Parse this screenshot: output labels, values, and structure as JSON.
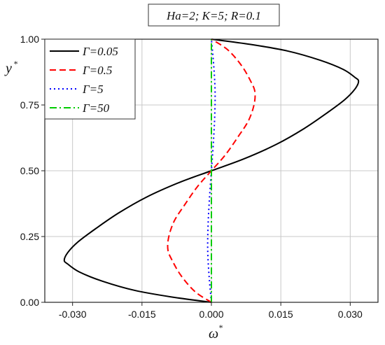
{
  "chart_data": {
    "type": "line",
    "title": "Ha=2; K=5; R=0.1",
    "xlabel": "ω",
    "xlabel_sup": "*",
    "ylabel": "y",
    "ylabel_sup": "*",
    "xlim": [
      -0.036,
      0.036
    ],
    "ylim": [
      0,
      1
    ],
    "xticks": [
      -0.03,
      -0.015,
      0.0,
      0.015,
      0.03
    ],
    "xtick_labels": [
      "-0.030",
      "-0.015",
      "0.000",
      "0.015",
      "0.030"
    ],
    "yticks": [
      0,
      0.25,
      0.5,
      0.75,
      1.0
    ],
    "ytick_labels": [
      "0.00",
      "0.25",
      "0.50",
      "0.75",
      "1.00"
    ],
    "grid": true,
    "legend_position": "top-left",
    "series": [
      {
        "name": "Γ=0.05",
        "color": "#000000",
        "style": "solid",
        "x": [
          0.0,
          -0.0085,
          -0.0165,
          -0.0235,
          -0.0285,
          -0.031,
          -0.0318,
          -0.031,
          -0.0288,
          -0.025,
          -0.02,
          -0.014,
          -0.007,
          0.0,
          0.007,
          0.014,
          0.02,
          0.025,
          0.0288,
          0.031,
          0.0318,
          0.031,
          0.0285,
          0.0235,
          0.0165,
          0.0085,
          0.0
        ],
        "y": [
          0.0,
          0.02,
          0.045,
          0.08,
          0.115,
          0.145,
          0.16,
          0.19,
          0.23,
          0.28,
          0.34,
          0.4,
          0.455,
          0.5,
          0.545,
          0.6,
          0.66,
          0.72,
          0.77,
          0.81,
          0.84,
          0.855,
          0.885,
          0.92,
          0.955,
          0.98,
          1.0
        ]
      },
      {
        "name": "Γ=0.5",
        "color": "#ff0000",
        "style": "dashed",
        "x": [
          0.0,
          -0.0035,
          -0.0065,
          -0.0085,
          -0.0094,
          -0.0092,
          -0.008,
          -0.0058,
          -0.003,
          0.0,
          0.003,
          0.0058,
          0.008,
          0.0092,
          0.0094,
          0.0085,
          0.0065,
          0.0035,
          0.0
        ],
        "y": [
          0.0,
          0.04,
          0.1,
          0.16,
          0.2,
          0.25,
          0.31,
          0.37,
          0.44,
          0.5,
          0.56,
          0.63,
          0.69,
          0.75,
          0.8,
          0.84,
          0.9,
          0.96,
          1.0
        ]
      },
      {
        "name": "Γ=5",
        "color": "#0000ff",
        "style": "dotted",
        "x": [
          0.0,
          -0.0005,
          -0.0008,
          -0.0007,
          -0.0004,
          0.0,
          0.0004,
          0.0007,
          0.0008,
          0.0005,
          0.0
        ],
        "y": [
          0.0,
          0.1,
          0.2,
          0.3,
          0.4,
          0.5,
          0.6,
          0.7,
          0.8,
          0.9,
          1.0
        ]
      },
      {
        "name": "Γ=50",
        "color": "#00cc00",
        "style": "dashdot",
        "x": [
          0.0,
          0.0,
          0.0
        ],
        "y": [
          0.0,
          0.5,
          1.0
        ]
      }
    ]
  }
}
